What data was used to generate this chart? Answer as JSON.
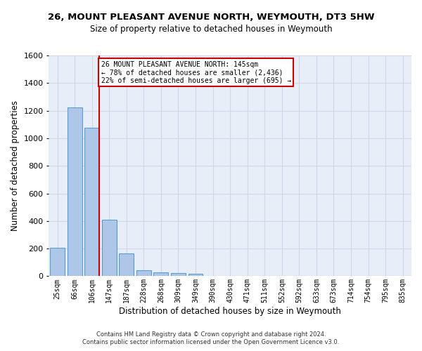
{
  "title": "26, MOUNT PLEASANT AVENUE NORTH, WEYMOUTH, DT3 5HW",
  "subtitle": "Size of property relative to detached houses in Weymouth",
  "xlabel": "Distribution of detached houses by size in Weymouth",
  "ylabel": "Number of detached properties",
  "bar_labels": [
    "25sqm",
    "66sqm",
    "106sqm",
    "147sqm",
    "187sqm",
    "228sqm",
    "268sqm",
    "309sqm",
    "349sqm",
    "390sqm",
    "430sqm",
    "471sqm",
    "511sqm",
    "552sqm",
    "592sqm",
    "633sqm",
    "673sqm",
    "714sqm",
    "754sqm",
    "795sqm",
    "835sqm"
  ],
  "bar_values": [
    205,
    1225,
    1075,
    410,
    165,
    45,
    28,
    20,
    15,
    0,
    0,
    0,
    0,
    0,
    0,
    0,
    0,
    0,
    0,
    0,
    0
  ],
  "bar_color": "#aec6e8",
  "bar_edgecolor": "#5a9fd4",
  "highlight_line_color": "#cc0000",
  "annotation_text": "26 MOUNT PLEASANT AVENUE NORTH: 145sqm\n← 78% of detached houses are smaller (2,436)\n22% of semi-detached houses are larger (695) →",
  "annotation_box_color": "#ffffff",
  "annotation_box_edgecolor": "#cc0000",
  "ylim": [
    0,
    1600
  ],
  "yticks": [
    0,
    200,
    400,
    600,
    800,
    1000,
    1200,
    1400,
    1600
  ],
  "grid_color": "#d0d8e8",
  "background_color": "#e8eef8",
  "footer_line1": "Contains HM Land Registry data © Crown copyright and database right 2024.",
  "footer_line2": "Contains public sector information licensed under the Open Government Licence v3.0."
}
